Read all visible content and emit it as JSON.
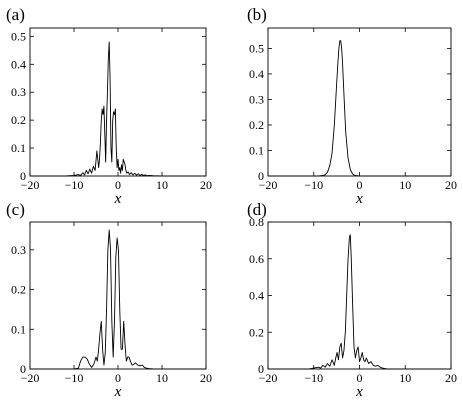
{
  "chart_data": [
    {
      "type": "line",
      "panel_label": "(a)",
      "xlabel": "x",
      "ylabel": "",
      "xlim": [
        -20,
        20
      ],
      "ylim": [
        0,
        0.53
      ],
      "xticks": [
        -20,
        -10,
        0,
        10,
        20
      ],
      "xtick_labels": [
        "−20",
        "−10",
        "0",
        "10",
        "20"
      ],
      "yticks": [
        0,
        0.1,
        0.2,
        0.3,
        0.4,
        0.5
      ],
      "ytick_labels": [
        "0",
        "0.1",
        "0.2",
        "0.3",
        "0.4",
        "0.5"
      ],
      "grid": false,
      "series": [
        {
          "x": [
            -20,
            -12,
            -10,
            -9,
            -8.5,
            -8,
            -7.6,
            -7.2,
            -6.8,
            -6.4,
            -6,
            -5.6,
            -5.2,
            -4.8,
            -4.6,
            -4.4,
            -4.2,
            -4.0,
            -3.8,
            -3.6,
            -3.4,
            -3.2,
            -3.0,
            -2.8,
            -2.6,
            -2.4,
            -2.2,
            -2.0,
            -1.8,
            -1.6,
            -1.4,
            -1.2,
            -1.0,
            -0.8,
            -0.6,
            -0.4,
            -0.2,
            0.0,
            0.2,
            0.4,
            0.6,
            0.8,
            1.0,
            1.2,
            1.4,
            1.6,
            1.8,
            2.0,
            2.3,
            2.6,
            3.0,
            3.4,
            3.8,
            4.2,
            4.6,
            5.0,
            5.4,
            5.8,
            6.2,
            6.6,
            7.0,
            8,
            10,
            20
          ],
          "y": [
            0,
            0,
            0.002,
            0.005,
            0.002,
            0.012,
            0.004,
            0.02,
            0.008,
            0.025,
            0.01,
            0.035,
            0.02,
            0.09,
            0.06,
            0.03,
            0.06,
            0.12,
            0.2,
            0.24,
            0.22,
            0.25,
            0.15,
            0.05,
            0.2,
            0.3,
            0.42,
            0.48,
            0.35,
            0.1,
            0.05,
            0.2,
            0.23,
            0.22,
            0.24,
            0.1,
            0.03,
            0.06,
            0.02,
            0.03,
            0.01,
            0.04,
            0.02,
            0.06,
            0.05,
            0.04,
            0.02,
            0.01,
            0.015,
            0.005,
            0.012,
            0.004,
            0.01,
            0.003,
            0.008,
            0.002,
            0.006,
            0.002,
            0.004,
            0.001,
            0.002,
            0.001,
            0,
            0
          ]
        }
      ]
    },
    {
      "type": "line",
      "panel_label": "(b)",
      "xlabel": "x",
      "ylabel": "",
      "xlim": [
        -20,
        20
      ],
      "ylim": [
        0,
        0.58
      ],
      "xticks": [
        -20,
        -10,
        0,
        10,
        20
      ],
      "xtick_labels": [
        "−20",
        "−10",
        "0",
        "10",
        "20"
      ],
      "yticks": [
        0,
        0.1,
        0.2,
        0.3,
        0.4,
        0.5
      ],
      "ytick_labels": [
        "0",
        "0.1",
        "0.2",
        "0.3",
        "0.4",
        "0.5"
      ],
      "grid": false,
      "series": [
        {
          "x": [
            -20,
            -9,
            -8,
            -7.5,
            -7,
            -6.5,
            -6,
            -5.5,
            -5,
            -4.7,
            -4.5,
            -4.3,
            -4.1,
            -3.9,
            -3.7,
            -3.5,
            -3.3,
            -3.0,
            -2.5,
            -2.0,
            -1.5,
            -1.0,
            0,
            20
          ],
          "y": [
            0,
            0,
            0.002,
            0.005,
            0.015,
            0.04,
            0.09,
            0.2,
            0.36,
            0.45,
            0.5,
            0.53,
            0.53,
            0.5,
            0.44,
            0.36,
            0.28,
            0.17,
            0.07,
            0.025,
            0.008,
            0.002,
            0,
            0
          ]
        }
      ]
    },
    {
      "type": "line",
      "panel_label": "(c)",
      "xlabel": "x",
      "ylabel": "",
      "xlim": [
        -20,
        20
      ],
      "ylim": [
        0,
        0.37
      ],
      "xticks": [
        -20,
        -10,
        0,
        10,
        20
      ],
      "xtick_labels": [
        "−20",
        "−10",
        "0",
        "10",
        "20"
      ],
      "yticks": [
        0,
        0.1,
        0.2,
        0.3
      ],
      "ytick_labels": [
        "0",
        "0.1",
        "0.2",
        "0.3"
      ],
      "grid": false,
      "series": [
        {
          "x": [
            -20,
            -10,
            -9,
            -8.5,
            -8,
            -7.5,
            -7,
            -6.5,
            -6,
            -5.5,
            -5,
            -4.7,
            -4.4,
            -4.1,
            -3.8,
            -3.5,
            -3.2,
            -2.9,
            -2.6,
            -2.3,
            -2.0,
            -1.7,
            -1.4,
            -1.1,
            -0.8,
            -0.5,
            -0.2,
            0.1,
            0.4,
            0.7,
            1.0,
            1.3,
            1.6,
            1.9,
            2.2,
            2.5,
            2.8,
            3.2,
            3.6,
            4.0,
            4.5,
            5.0,
            5.5,
            6.0,
            6.5,
            7.0,
            8,
            10,
            20
          ],
          "y": [
            0,
            0,
            0.002,
            0.02,
            0.03,
            0.03,
            0.025,
            0.012,
            0.004,
            0.012,
            0.03,
            0.02,
            0.05,
            0.09,
            0.12,
            0.05,
            0.01,
            0.04,
            0.15,
            0.3,
            0.35,
            0.3,
            0.12,
            0.03,
            0.12,
            0.28,
            0.33,
            0.3,
            0.15,
            0.05,
            0.05,
            0.12,
            0.06,
            0.02,
            0.03,
            0.03,
            0.02,
            0.01,
            0.012,
            0.015,
            0.01,
            0.008,
            0.01,
            0.004,
            0.002,
            0.001,
            0,
            0,
            0
          ]
        }
      ]
    },
    {
      "type": "line",
      "panel_label": "(d)",
      "xlabel": "x",
      "ylabel": "",
      "xlim": [
        -20,
        20
      ],
      "ylim": [
        0,
        0.8
      ],
      "xticks": [
        -20,
        -10,
        0,
        10,
        20
      ],
      "xtick_labels": [
        "−20",
        "−10",
        "0",
        "10",
        "20"
      ],
      "yticks": [
        0,
        0.2,
        0.4,
        0.6,
        0.8
      ],
      "ytick_labels": [
        "0",
        "0.2",
        "0.4",
        "0.6",
        "0.8"
      ],
      "grid": false,
      "series": [
        {
          "x": [
            -20,
            -11,
            -10,
            -9,
            -8.5,
            -8,
            -7.5,
            -7,
            -6.5,
            -6,
            -5.5,
            -5.2,
            -4.9,
            -4.6,
            -4.3,
            -4.0,
            -3.7,
            -3.4,
            -3.1,
            -2.8,
            -2.5,
            -2.2,
            -2.0,
            -1.8,
            -1.5,
            -1.2,
            -0.9,
            -0.6,
            -0.3,
            0.0,
            0.3,
            0.6,
            0.9,
            1.2,
            1.5,
            2.0,
            2.5,
            3.0,
            3.5,
            4.0,
            4.5,
            5.0,
            6,
            8,
            20
          ],
          "y": [
            0,
            0,
            0.005,
            0.01,
            0.005,
            0.02,
            0.01,
            0.03,
            0.015,
            0.05,
            0.02,
            0.06,
            0.09,
            0.05,
            0.12,
            0.14,
            0.06,
            0.1,
            0.2,
            0.4,
            0.6,
            0.72,
            0.73,
            0.6,
            0.35,
            0.12,
            0.06,
            0.1,
            0.12,
            0.04,
            0.06,
            0.09,
            0.05,
            0.04,
            0.06,
            0.03,
            0.04,
            0.02,
            0.015,
            0.02,
            0.01,
            0.005,
            0,
            0,
            0
          ]
        }
      ]
    }
  ]
}
